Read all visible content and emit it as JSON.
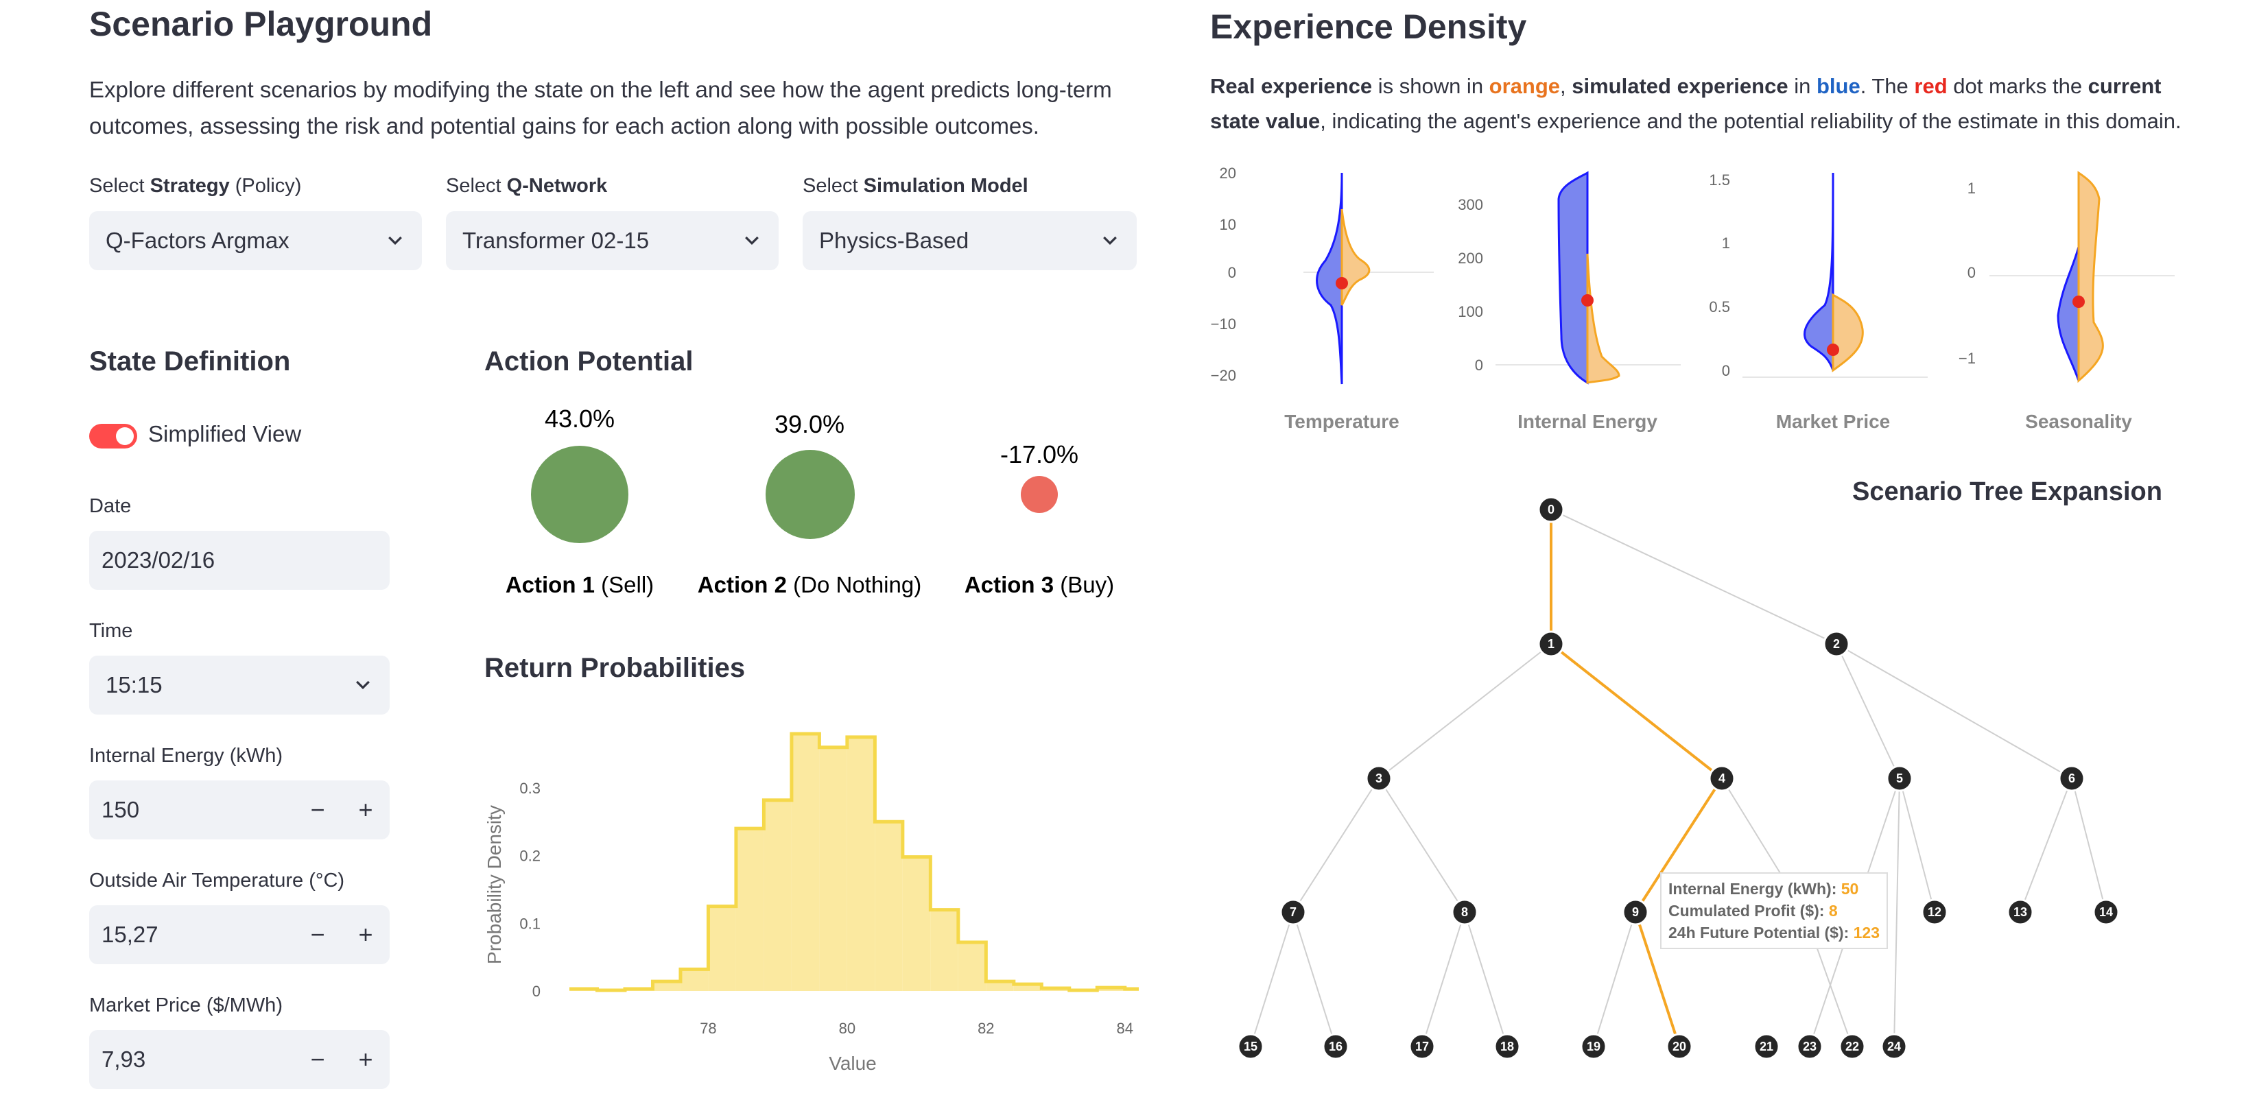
{
  "left": {
    "title": "Scenario Playground",
    "description": "Explore different scenarios by modifying the state on the left and see how the agent predicts long-term outcomes, assessing the risk and potential gains for each action along with possible outcomes.",
    "selects": [
      {
        "prefix": "Select ",
        "bold": "Strategy",
        "suffix": " (Policy)",
        "value": "Q-Factors Argmax"
      },
      {
        "prefix": "Select ",
        "bold": "Q-Network",
        "suffix": "",
        "value": "Transformer 02-15"
      },
      {
        "prefix": "Select ",
        "bold": "Simulation Model",
        "suffix": "",
        "value": "Physics-Based"
      }
    ]
  },
  "state": {
    "title": "State Definition",
    "toggle_label": "Simplified View",
    "date_label": "Date",
    "date_value": "2023/02/16",
    "time_label": "Time",
    "time_value": "15:15",
    "energy_label": "Internal Energy (kWh)",
    "energy_value": "150",
    "temp_label": "Outside Air Temperature (°C)",
    "temp_value": "15,27",
    "price_label": "Market Price ($/MWh)",
    "price_value": "7,93",
    "minus": "−",
    "plus": "+"
  },
  "actions": {
    "title": "Action Potential",
    "items": [
      {
        "pct": "43.0%",
        "bold": "Action 1",
        "rest": " (Sell)",
        "color": "#6e9e5c"
      },
      {
        "pct": "39.0%",
        "bold": "Action 2",
        "rest": " (Do Nothing)",
        "color": "#6e9e5c"
      },
      {
        "pct": "-17.0%",
        "bold": "Action 3",
        "rest": " (Buy)",
        "color": "#ec6a5e"
      }
    ]
  },
  "returns": {
    "title": "Return Probabilities",
    "ylabel": "Probability Density",
    "xlabel": "Value",
    "yticks": [
      "0",
      "0.1",
      "0.2",
      "0.3"
    ],
    "xticks": [
      "78",
      "80",
      "82",
      "84"
    ]
  },
  "chart_data": {
    "type": "histogram",
    "title": "Return Probabilities",
    "xlabel": "Value",
    "ylabel": "Probability Density",
    "bin_edges": [
      76.0,
      76.4,
      76.8,
      77.2,
      77.6,
      78.0,
      78.4,
      78.8,
      79.2,
      79.6,
      80.0,
      80.4,
      80.8,
      81.2,
      81.6,
      82.0,
      82.4,
      82.8,
      83.2,
      83.6,
      84.0,
      84.2
    ],
    "values": [
      0.003,
      0.001,
      0.003,
      0.014,
      0.032,
      0.125,
      0.24,
      0.282,
      0.38,
      0.36,
      0.375,
      0.25,
      0.198,
      0.12,
      0.072,
      0.014,
      0.01,
      0.004,
      0.001,
      0.005,
      0.003
    ],
    "ylim": [
      0,
      0.38
    ],
    "xlim": [
      76,
      84.2
    ],
    "color": "#f5d84a"
  },
  "density": {
    "title": "Experience Density",
    "desc_parts": [
      {
        "text": "Real experience",
        "style": "bold"
      },
      {
        "text": " is shown in ",
        "style": ""
      },
      {
        "text": "orange",
        "style": "orange"
      },
      {
        "text": ", ",
        "style": ""
      },
      {
        "text": "simulated experience",
        "style": "bold"
      },
      {
        "text": " in ",
        "style": ""
      },
      {
        "text": "blue",
        "style": "blue"
      },
      {
        "text": ". The ",
        "style": ""
      },
      {
        "text": "red",
        "style": "red"
      },
      {
        "text": " dot marks the ",
        "style": ""
      },
      {
        "text": "current state value",
        "style": "bold"
      },
      {
        "text": ", indicating the agent's experience and the potential reliability of the estimate in this domain.",
        "style": ""
      }
    ],
    "colors": {
      "real": "#f5a623",
      "simulated": "#1a1aff",
      "current": "#e8281e"
    },
    "plots": [
      {
        "label": "Temperature",
        "ticks": [
          "20",
          "10",
          "0",
          "−10",
          "−20"
        ]
      },
      {
        "label": "Internal Energy",
        "ticks": [
          "300",
          "200",
          "100",
          "0"
        ]
      },
      {
        "label": "Market Price",
        "ticks": [
          "1.5",
          "1",
          "0.5",
          "0"
        ]
      },
      {
        "label": "Seasonality",
        "ticks": [
          "1",
          "0",
          "−1"
        ]
      }
    ]
  },
  "tree": {
    "title": "Scenario Tree Expansion",
    "nodes": [
      "0",
      "1",
      "2",
      "3",
      "4",
      "5",
      "6",
      "7",
      "8",
      "9",
      "12",
      "13",
      "14",
      "15",
      "16",
      "17",
      "18",
      "19",
      "20",
      "21",
      "23",
      "22",
      "24"
    ],
    "tooltip": {
      "energy_label": "Internal Energy (kWh): ",
      "energy_value": "50",
      "profit_label": "Cumulated Profit ($): ",
      "profit_value": "8",
      "future_label": "24h Future Potential ($): ",
      "future_value": "123"
    }
  }
}
